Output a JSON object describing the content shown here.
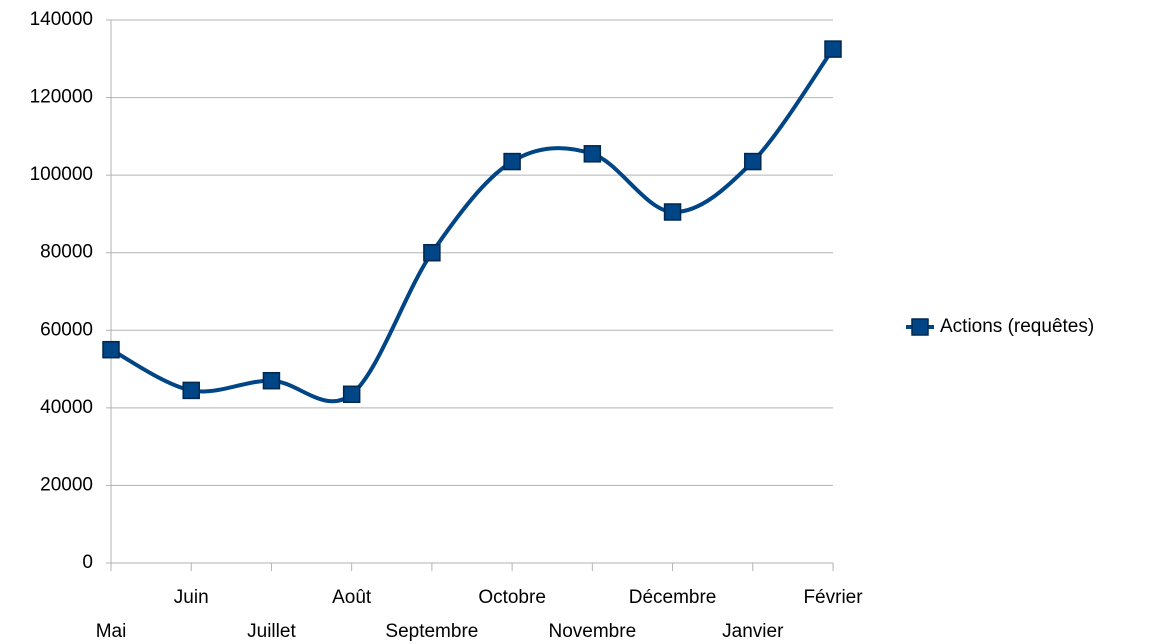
{
  "chart_data": {
    "type": "line",
    "smooth": true,
    "categories": [
      "Mai",
      "Juin",
      "Juillet",
      "Août",
      "Septembre",
      "Octobre",
      "Novembre",
      "Décembre",
      "Janvier",
      "Février"
    ],
    "series": [
      {
        "name": "Actions (requêtes)",
        "color": "#004586",
        "values": [
          55000,
          44500,
          47000,
          43500,
          80000,
          103500,
          105500,
          90500,
          103500,
          132500
        ]
      }
    ],
    "ylim": [
      0,
      140000
    ],
    "yticks": [
      0,
      20000,
      40000,
      60000,
      80000,
      100000,
      120000,
      140000
    ],
    "grid": true,
    "legend": "right"
  }
}
